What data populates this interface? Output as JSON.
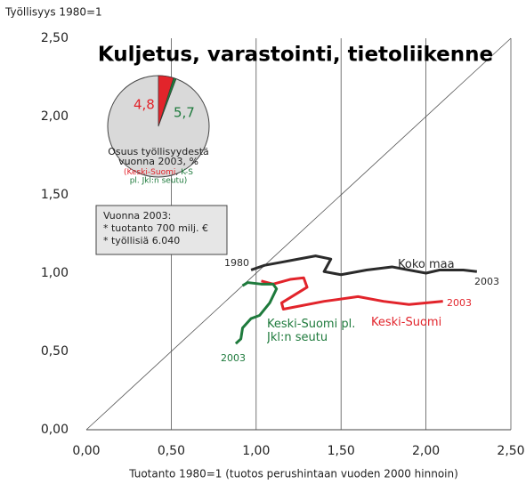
{
  "chart_data": {
    "type": "line",
    "title": "Kuljetus, varastointi, tietoliikenne",
    "y_label": "Työllisyys 1980=1",
    "x_label": "Tuotanto 1980=1 (tuotos perushintaan vuoden 2000 hinnoin)",
    "xlim": [
      0,
      2.5
    ],
    "ylim": [
      0,
      2.5
    ],
    "xticks": [
      {
        "value": 0,
        "label": "0,00"
      },
      {
        "value": 0.5,
        "label": "0,50"
      },
      {
        "value": 1,
        "label": "1,00"
      },
      {
        "value": 1.5,
        "label": "1,50"
      },
      {
        "value": 2,
        "label": "2,00"
      },
      {
        "value": 2.5,
        "label": "2,50"
      }
    ],
    "yticks": [
      {
        "value": 0,
        "label": "0,00"
      },
      {
        "value": 0.5,
        "label": "0,50"
      },
      {
        "value": 1,
        "label": "1,00"
      },
      {
        "value": 1.5,
        "label": "1,50"
      },
      {
        "value": 2,
        "label": "2,00"
      },
      {
        "value": 2.5,
        "label": "2,50"
      }
    ],
    "grid": "x",
    "diagonal": true,
    "series": [
      {
        "name": "Koko maa",
        "color": "#2b2b2b",
        "x": [
          0.97,
          1.05,
          1.15,
          1.25,
          1.35,
          1.44,
          1.4,
          1.5,
          1.65,
          1.8,
          1.9,
          2.0,
          2.08,
          2.22,
          2.3
        ],
        "values": [
          1.02,
          1.05,
          1.07,
          1.09,
          1.11,
          1.09,
          1.01,
          0.99,
          1.02,
          1.04,
          1.02,
          1.0,
          1.02,
          1.02,
          1.01
        ]
      },
      {
        "name": "Keski-Suomi",
        "color": "#e2242b",
        "x": [
          1.03,
          1.1,
          1.2,
          1.28,
          1.3,
          1.15,
          1.16,
          1.4,
          1.6,
          1.75,
          1.9,
          2.1
        ],
        "values": [
          0.95,
          0.93,
          0.96,
          0.97,
          0.91,
          0.81,
          0.77,
          0.82,
          0.85,
          0.82,
          0.8,
          0.82
        ]
      },
      {
        "name": "Keski-Suomi pl. Jkl:n seutu",
        "color": "#1e7a3c",
        "x": [
          0.92,
          0.95,
          1.03,
          1.1,
          1.12,
          1.08,
          1.02,
          0.97,
          0.92,
          0.91,
          0.88
        ],
        "values": [
          0.92,
          0.94,
          0.93,
          0.93,
          0.9,
          0.81,
          0.73,
          0.71,
          0.65,
          0.58,
          0.55
        ]
      }
    ],
    "annotations": [
      "1980",
      "2003",
      "2003",
      "2003"
    ],
    "pie": {
      "values": [
        4.8,
        5.7
      ],
      "value_labels": [
        "4,8",
        "5,7"
      ],
      "colors": [
        "#e2242b",
        "#1e7a3c"
      ],
      "background": "#d9d9d9",
      "note": [
        "Osuus työllisyydestä",
        "vuonna 2003, %"
      ],
      "legend": [
        "(Keski-Suomi",
        ", ",
        "K-S",
        "pl. Jkl:n seutu)"
      ]
    },
    "info_box": [
      "Vuonna 2003:",
      "* tuotanto 700 milj. €",
      "* työllisiä 6.040"
    ]
  }
}
